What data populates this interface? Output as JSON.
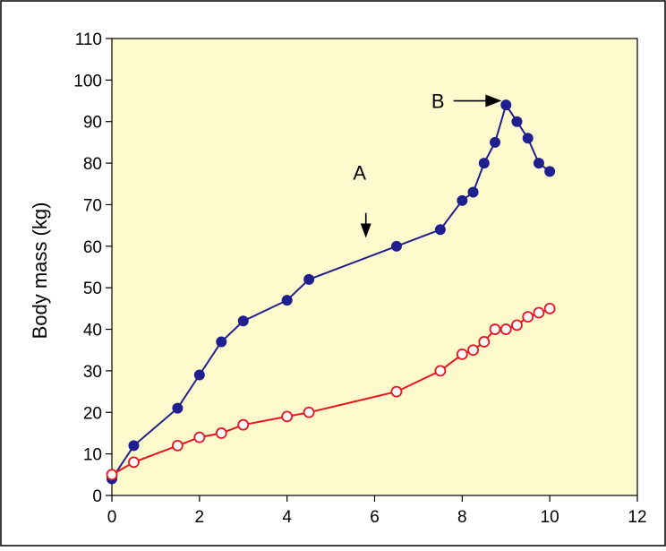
{
  "chart_data": {
    "type": "line",
    "title": "",
    "xlabel": "",
    "ylabel": "Body mass (kg)",
    "xlim": [
      0,
      12
    ],
    "ylim": [
      0,
      110
    ],
    "xticks": [
      "0",
      "2",
      "4",
      "6",
      "8",
      "10",
      "12"
    ],
    "yticks": [
      "0",
      "10",
      "20",
      "30",
      "40",
      "50",
      "60",
      "70",
      "80",
      "90",
      "100",
      "110"
    ],
    "grid": false,
    "legend": "none",
    "plot_background": "#FFFACD",
    "series": [
      {
        "color": "#1F1F8F",
        "marker": "filled-circle",
        "x": [
          0,
          0.5,
          1.5,
          2,
          2.5,
          3,
          4,
          4.5,
          6.5,
          7.5,
          8,
          8.25,
          8.5,
          8.75,
          9,
          9.25,
          9.5,
          9.75,
          10
        ],
        "y": [
          4,
          12,
          21,
          29,
          37,
          42,
          47,
          52,
          60,
          64,
          71,
          73,
          80,
          85,
          94,
          90,
          86,
          80,
          78
        ]
      },
      {
        "color": "#E8141E",
        "marker": "open-circle",
        "x": [
          0,
          0.5,
          1.5,
          2,
          2.5,
          3,
          4,
          4.5,
          6.5,
          7.5,
          8,
          8.25,
          8.5,
          8.75,
          9,
          9.25,
          9.5,
          9.75,
          10
        ],
        "y": [
          5,
          8,
          12,
          14,
          15,
          17,
          19,
          20,
          25,
          30,
          34,
          35,
          37,
          40,
          40,
          41,
          43,
          44,
          45
        ]
      }
    ],
    "annotations": [
      {
        "label": "A",
        "arrow": "down",
        "x": 5.8,
        "y_from": 68,
        "y_to": 62
      },
      {
        "label": "B",
        "arrow": "right",
        "y": 95,
        "x_from": 7.8,
        "x_to": 8.9
      }
    ]
  }
}
